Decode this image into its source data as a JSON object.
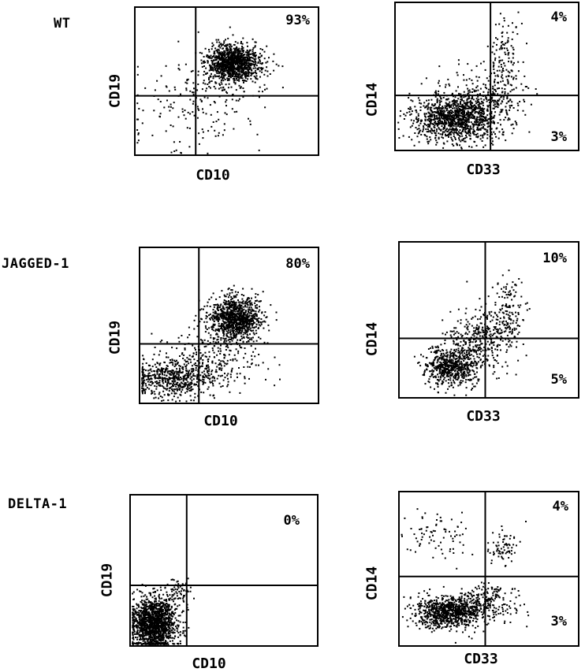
{
  "rows": [
    {
      "label": "WT",
      "left": {
        "xlabel": "CD10",
        "ylabel": "CD19",
        "upper_right_pct": "93%"
      },
      "right": {
        "xlabel": "CD33",
        "ylabel": "CD14",
        "upper_right_pct": "4%",
        "lower_right_pct": "3%"
      }
    },
    {
      "label": "JAGGED-1",
      "left": {
        "xlabel": "CD10",
        "ylabel": "CD19",
        "upper_right_pct": "80%"
      },
      "right": {
        "xlabel": "CD33",
        "ylabel": "CD14",
        "upper_right_pct": "10%",
        "lower_right_pct": "5%"
      }
    },
    {
      "label": "DELTA-1",
      "left": {
        "xlabel": "CD10",
        "ylabel": "CD19",
        "upper_right_pct": "0%"
      },
      "right": {
        "xlabel": "CD33",
        "ylabel": "CD14",
        "upper_right_pct": "4%",
        "lower_right_pct": "3%"
      }
    }
  ],
  "chart_data": [
    {
      "type": "scatter",
      "population": "WT",
      "xlabel": "CD10",
      "ylabel": "CD19",
      "quadrant_percent": {
        "upper_right": 93
      },
      "main_cluster": "upper-right"
    },
    {
      "type": "scatter",
      "population": "WT",
      "xlabel": "CD33",
      "ylabel": "CD14",
      "quadrant_percent": {
        "upper_right": 4,
        "lower_right": 3
      },
      "main_cluster": "lower-left"
    },
    {
      "type": "scatter",
      "population": "JAGGED-1",
      "xlabel": "CD10",
      "ylabel": "CD19",
      "quadrant_percent": {
        "upper_right": 80
      },
      "main_cluster": "upper-right"
    },
    {
      "type": "scatter",
      "population": "JAGGED-1",
      "xlabel": "CD33",
      "ylabel": "CD14",
      "quadrant_percent": {
        "upper_right": 10,
        "lower_right": 5
      },
      "main_cluster": "lower-left"
    },
    {
      "type": "scatter",
      "population": "DELTA-1",
      "xlabel": "CD10",
      "ylabel": "CD19",
      "quadrant_percent": {
        "upper_right": 0
      },
      "main_cluster": "lower-left"
    },
    {
      "type": "scatter",
      "population": "DELTA-1",
      "xlabel": "CD33",
      "ylabel": "CD14",
      "quadrant_percent": {
        "upper_right": 4,
        "lower_right": 3
      },
      "main_cluster": "lower-left"
    }
  ]
}
